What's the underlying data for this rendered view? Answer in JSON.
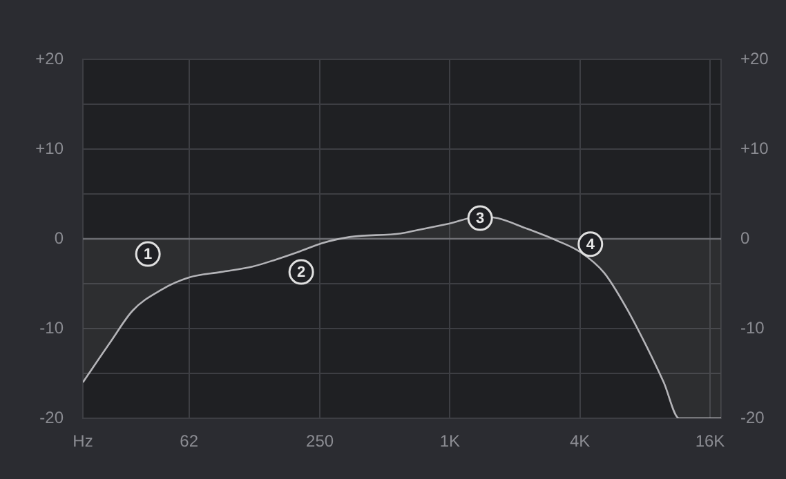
{
  "chart_data": {
    "type": "area",
    "log": "x",
    "grid": true,
    "legend": false,
    "xlim": [
      20,
      18000
    ],
    "xticks": [
      {
        "value": 20,
        "label": "Hz"
      },
      62,
      250,
      {
        "value": 1000,
        "label": "1K"
      },
      {
        "value": 4000,
        "label": "4K"
      },
      {
        "value": 16000,
        "label": "16K"
      }
    ],
    "ylim": [
      -20,
      20
    ],
    "yticks": [
      -20,
      {
        "value": -15,
        "label": null
      },
      -10,
      {
        "value": -5,
        "label": null
      },
      0,
      {
        "value": 5,
        "label": null
      },
      {
        "value": 10,
        "label": "+10"
      },
      {
        "value": 15,
        "label": null
      },
      {
        "value": 20,
        "label": "+20"
      }
    ],
    "y2lim": [
      -20,
      20
    ],
    "y2ticks": [
      -20,
      {
        "value": -15,
        "label": null
      },
      -10,
      {
        "value": -5,
        "label": null
      },
      0,
      {
        "value": 5,
        "label": null
      },
      {
        "value": 10,
        "label": "+10"
      },
      {
        "value": 15,
        "label": null
      },
      {
        "value": 20,
        "label": "+20"
      }
    ],
    "ref_lines": [
      {
        "axis": "y",
        "value": 0,
        "color": "#6a6b70"
      }
    ],
    "series": [
      {
        "color": "#b4b4b8",
        "marker": "none",
        "x": [
          20,
          27,
          34,
          46,
          62,
          87,
          122,
          157,
          202,
          255,
          343,
          592,
          686,
          992,
          1393,
          1662,
          2233,
          3131,
          4030,
          5180,
          6560,
          8060,
          9770,
          11500,
          18000
        ],
        "values": [
          -16,
          -11.4,
          -8,
          -5.7,
          -4.3,
          -3.7,
          -3.1,
          -2.3,
          -1.4,
          -0.5,
          0.2,
          0.6,
          0.9,
          1.7,
          2.5,
          2.3,
          1.2,
          -0.2,
          -1.5,
          -3.8,
          -7.7,
          -11.8,
          -16,
          -20,
          -20
        ]
      }
    ],
    "annotations": [
      {
        "text": "1",
        "x": 40,
        "y": -1.7
      },
      {
        "text": "2",
        "x": 205,
        "y": -3.7
      },
      {
        "text": "3",
        "x": 1380,
        "y": 2.3
      },
      {
        "text": "4",
        "x": 4470,
        "y": -0.6
      }
    ]
  }
}
